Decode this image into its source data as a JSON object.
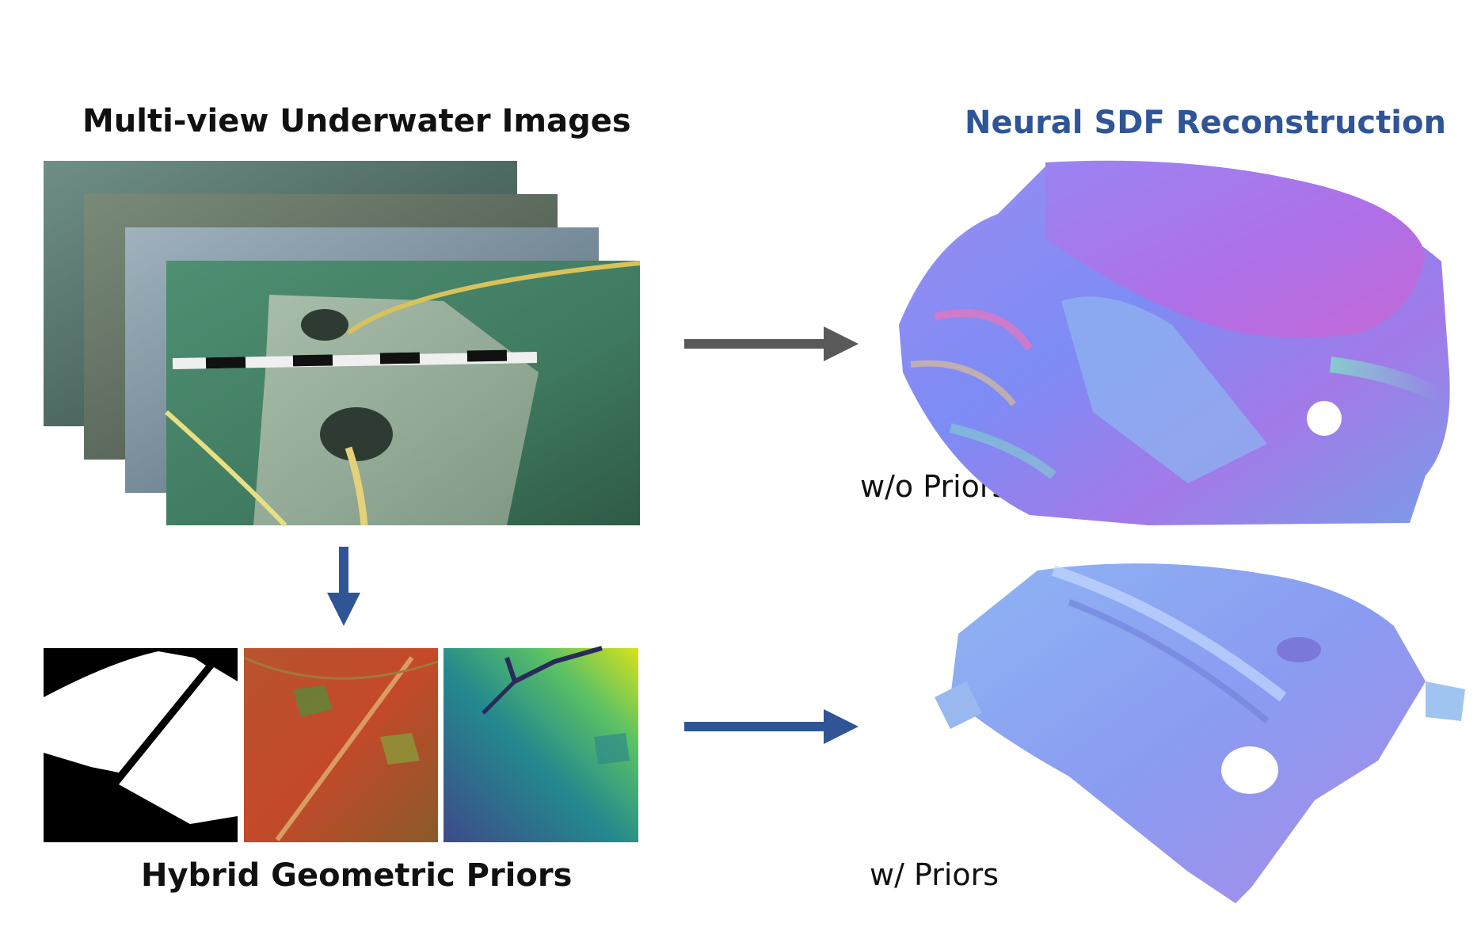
{
  "titles": {
    "input": "Multi-view Underwater Images",
    "output": "Neural SDF Reconstruction",
    "priors": "Hybrid Geometric Priors"
  },
  "labels": {
    "without_priors": "w/o Priors",
    "with_priors": "w/ Priors"
  },
  "colors": {
    "output_title": "#2f5597",
    "gray_arrow": "#595959",
    "blue_arrow": "#2f5597"
  }
}
